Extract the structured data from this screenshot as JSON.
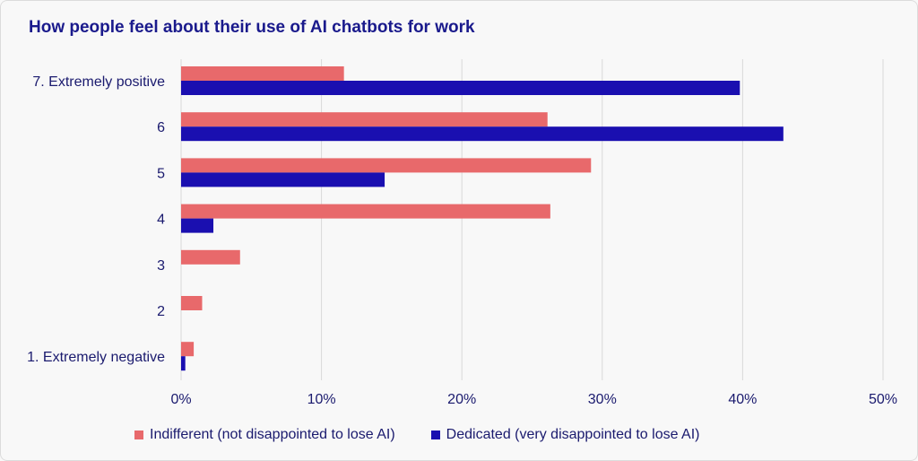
{
  "chart_data": {
    "type": "bar",
    "orientation": "horizontal",
    "title": "How people feel about their use of AI chatbots for work",
    "categories": [
      "7. Extremely positive",
      "6",
      "5",
      "4",
      "3",
      "2",
      "1. Extremely negative"
    ],
    "series": [
      {
        "name": "Indifferent (not disappointed to lose AI)",
        "color": "#e8696b",
        "values": [
          11.6,
          26.1,
          29.2,
          26.3,
          4.2,
          1.5,
          0.9
        ]
      },
      {
        "name": "Dedicated (very disappointed to lose AI)",
        "color": "#1a0fb0",
        "values": [
          39.8,
          42.9,
          14.5,
          2.3,
          0,
          0,
          0.3
        ]
      }
    ],
    "xlim": [
      0,
      50
    ],
    "xticks": [
      "0%",
      "10%",
      "20%",
      "30%",
      "40%",
      "50%"
    ],
    "xtick_values": [
      0,
      10,
      20,
      30,
      40,
      50
    ],
    "grid": true,
    "legend_position": "bottom"
  }
}
